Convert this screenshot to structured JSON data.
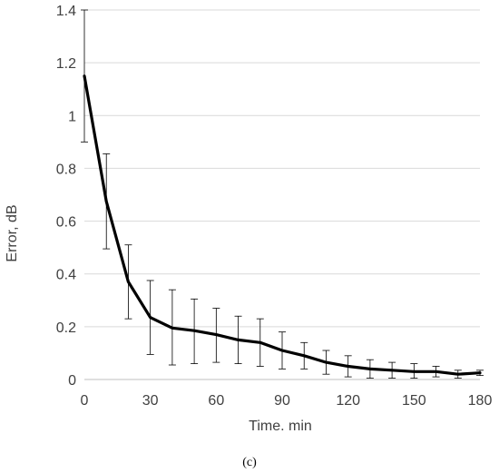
{
  "chart_data": {
    "type": "line",
    "title": "",
    "xlabel": "Time. min",
    "ylabel": "Error, dB",
    "panel_label": "(c)",
    "xlim": [
      0,
      180
    ],
    "ylim": [
      0,
      1.4
    ],
    "x_ticks": [
      0,
      30,
      60,
      90,
      120,
      150,
      180
    ],
    "x_tick_labels": [
      "0",
      "30",
      "60",
      "90",
      "120",
      "150",
      "180"
    ],
    "y_ticks": [
      0,
      0.2,
      0.4,
      0.6,
      0.8,
      1.0,
      1.2,
      1.4
    ],
    "y_tick_labels": [
      "0",
      "0.2",
      "0.4",
      "0.6",
      "0.8",
      "1",
      "1.2",
      "1.4"
    ],
    "grid": "horizontal",
    "legend": "none",
    "line_color": "#000000",
    "grid_color": "#d9d9d9",
    "series": [
      {
        "x": [
          0,
          10,
          20,
          30,
          40,
          50,
          60,
          70,
          80,
          90,
          100,
          110,
          120,
          130,
          140,
          150,
          160,
          170,
          180
        ],
        "y": [
          1.15,
          0.675,
          0.37,
          0.235,
          0.195,
          0.185,
          0.17,
          0.15,
          0.14,
          0.11,
          0.09,
          0.065,
          0.05,
          0.04,
          0.035,
          0.03,
          0.03,
          0.02,
          0.025
        ],
        "error_upper": [
          1.4,
          0.855,
          0.51,
          0.375,
          0.34,
          0.305,
          0.27,
          0.24,
          0.23,
          0.18,
          0.14,
          0.11,
          0.09,
          0.075,
          0.065,
          0.06,
          0.05,
          0.035,
          0.035
        ],
        "error_lower": [
          0.9,
          0.495,
          0.23,
          0.095,
          0.055,
          0.06,
          0.065,
          0.06,
          0.05,
          0.04,
          0.04,
          0.02,
          0.01,
          0.005,
          0.005,
          0.005,
          0.01,
          0.005,
          0.015
        ]
      }
    ]
  }
}
